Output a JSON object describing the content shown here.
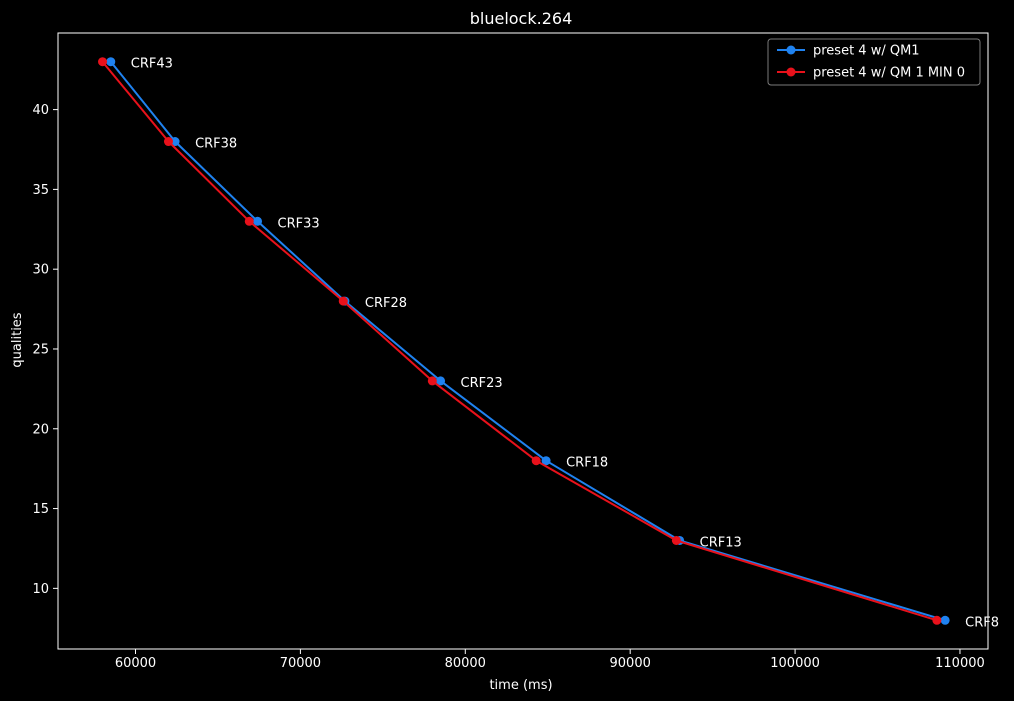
{
  "chart_data": {
    "type": "line",
    "title": "bluelock.264",
    "xlabel": "time (ms)",
    "ylabel": "qualities",
    "xlim": [
      55300,
      111700
    ],
    "ylim": [
      6.2,
      44.8
    ],
    "xticks": [
      60000,
      70000,
      80000,
      90000,
      100000,
      110000
    ],
    "yticks": [
      10,
      15,
      20,
      25,
      30,
      35,
      40
    ],
    "grid": false,
    "legend_position": "top-right",
    "background": "#000000",
    "foreground": "#ffffff",
    "series": [
      {
        "name": "preset 4 w/ QM1",
        "color": "#1f82f0",
        "x": [
          58500,
          62400,
          67400,
          72700,
          78500,
          84900,
          93000,
          109100
        ],
        "y": [
          43,
          38,
          33,
          28,
          23,
          18,
          13,
          8
        ]
      },
      {
        "name": "preset 4 w/ QM 1 MIN 0",
        "color": "#e8111b",
        "x": [
          58000,
          62000,
          66900,
          72600,
          78000,
          84300,
          92800,
          108600
        ],
        "y": [
          43,
          38,
          33,
          28,
          23,
          18,
          13,
          8
        ]
      }
    ],
    "annotations": [
      {
        "text": "CRF43",
        "x": 58500,
        "y": 43
      },
      {
        "text": "CRF38",
        "x": 62400,
        "y": 38
      },
      {
        "text": "CRF33",
        "x": 67400,
        "y": 33
      },
      {
        "text": "CRF28",
        "x": 72700,
        "y": 28
      },
      {
        "text": "CRF23",
        "x": 78500,
        "y": 23
      },
      {
        "text": "CRF18",
        "x": 84900,
        "y": 18
      },
      {
        "text": "CRF13",
        "x": 93000,
        "y": 13
      },
      {
        "text": "CRF8",
        "x": 109100,
        "y": 8
      }
    ]
  }
}
